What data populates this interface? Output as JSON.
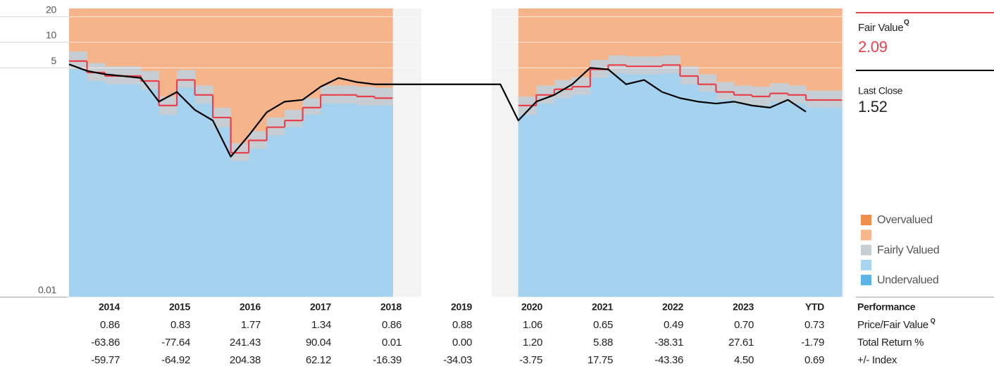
{
  "chart_data": {
    "type": "valuation",
    "log_scale": true,
    "ylim": [
      0.01,
      25
    ],
    "yticks": [
      0.01,
      5,
      10,
      20
    ],
    "xlim": [
      2014,
      2024.75
    ],
    "x": [
      2014,
      2014.25,
      2014.5,
      2014.75,
      2015,
      2015.25,
      2015.5,
      2015.75,
      2016,
      2016.25,
      2016.5,
      2016.75,
      2017,
      2017.25,
      2017.5,
      2017.75,
      2018,
      2018.25,
      2018.5,
      2018.75,
      2019,
      2019.25,
      2019.5,
      2019.75,
      2020,
      2020.25,
      2020.5,
      2020.75,
      2021,
      2021.25,
      2021.5,
      2021.75,
      2022,
      2022.25,
      2022.5,
      2022.75,
      2023,
      2023.25,
      2023.5,
      2023.75,
      2024,
      2024.25
    ],
    "series": [
      {
        "name": "Last Close",
        "color": "#000000",
        "values": [
          5.5,
          4.6,
          4.2,
          4.0,
          3.8,
          2.0,
          2.6,
          1.6,
          1.2,
          0.45,
          0.8,
          1.5,
          2.0,
          2.1,
          3.0,
          3.8,
          3.4,
          3.2,
          3.2,
          3.2,
          3.2,
          3.2,
          3.2,
          3.2,
          3.2,
          1.2,
          2.0,
          2.4,
          3.2,
          5.0,
          4.8,
          3.2,
          3.6,
          2.6,
          2.2,
          2.0,
          1.9,
          2.0,
          1.8,
          1.7,
          2.1,
          1.52
        ]
      },
      {
        "name": "Fair Value",
        "color": "#e8414b",
        "values": [
          6.0,
          4.4,
          4.0,
          4.0,
          3.5,
          1.8,
          3.6,
          2.4,
          1.3,
          0.5,
          0.7,
          1.0,
          1.2,
          1.7,
          2.4,
          2.4,
          2.3,
          2.2,
          null,
          null,
          null,
          null,
          null,
          null,
          null,
          1.8,
          2.4,
          2.8,
          3.0,
          4.8,
          5.4,
          5.2,
          5.2,
          5.4,
          4.0,
          3.2,
          2.6,
          2.4,
          2.3,
          2.5,
          2.4,
          2.09
        ]
      },
      {
        "name": "Fairly Valued",
        "color": "#c6ced3",
        "values": [
          7.8,
          5.7,
          5.2,
          5.2,
          4.6,
          2.3,
          4.7,
          3.1,
          1.7,
          0.65,
          0.9,
          1.3,
          1.6,
          2.2,
          3.1,
          3.1,
          3.0,
          2.9,
          null,
          null,
          null,
          null,
          null,
          null,
          null,
          2.3,
          3.1,
          3.6,
          3.9,
          6.2,
          7.0,
          6.8,
          6.8,
          7.0,
          5.2,
          4.2,
          3.4,
          3.1,
          3.0,
          3.3,
          3.1,
          2.7
        ]
      },
      {
        "name": "Undervalued",
        "color": "#a4d2ef",
        "values": [
          4.8,
          3.5,
          3.2,
          3.2,
          2.8,
          1.4,
          2.9,
          1.9,
          1.0,
          0.4,
          0.56,
          0.8,
          1.0,
          1.4,
          1.9,
          1.9,
          1.8,
          1.8,
          null,
          null,
          null,
          null,
          null,
          null,
          null,
          1.4,
          1.9,
          2.2,
          2.4,
          3.8,
          4.3,
          4.2,
          4.2,
          4.3,
          3.2,
          2.6,
          2.1,
          1.9,
          1.8,
          2.0,
          1.9,
          1.7
        ]
      }
    ],
    "overvalued_color": "#f5b48a",
    "legend": [
      {
        "name": "Overvalued",
        "color": "#f28e4b"
      },
      {
        "name": null,
        "color": "#f7b68c"
      },
      {
        "name": null,
        "color": "#a8d5f0"
      }
    ],
    "badge": "Q",
    "current_fair_value": 2.09,
    "last_close": 1.52,
    "performance": {
      "title": "Performance",
      "columns": [
        "2014",
        "2015",
        "2016",
        "2017",
        "2018",
        "2019",
        "2020",
        "2021",
        "2022",
        "2023",
        "YTD"
      ],
      "rows": [
        {
          "label": "Price/Fair Value",
          "values": [
            "0.86",
            "0.83",
            "1.77",
            "1.34",
            "0.86",
            "0.88",
            "1.06",
            "0.65",
            "0.49",
            "0.70",
            "0.73"
          ]
        },
        {
          "label": "Total Return %",
          "values": [
            "-63.86",
            "-77.64",
            "241.43",
            "90.04",
            "0.01",
            "0.00",
            "1.20",
            "5.88",
            "-38.31",
            "27.61",
            "-1.79"
          ]
        },
        {
          "label": "+/- Index",
          "values": [
            "-59.77",
            "-64.92",
            "204.38",
            "62.12",
            "-16.39",
            "-34.03",
            "-3.75",
            "17.75",
            "-43.36",
            "4.50",
            "0.69"
          ]
        }
      ]
    }
  }
}
